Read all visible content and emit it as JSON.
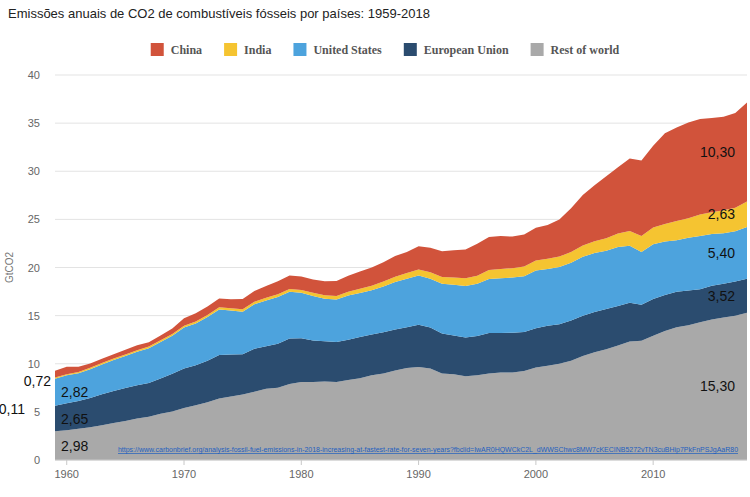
{
  "chart_data": {
    "type": "area",
    "stacked": true,
    "title": "Emissões anuais de CO2 de combustíveis fósseis por países: 1959-2018",
    "y_label": "GtCO2",
    "source": "https://www.carbonbrief.org/analysis-fossil-fuel-emissions-in-2018-increasing-at-fastest-rate-for-seven-years?fbclid=IwAR0HQWCkC2L_dWWSChwc8MW7cKECINB5272vTN3cuBHip7PkFnPSJgAaR80",
    "legend": "top",
    "grid": true,
    "data_labels": true,
    "xlim": [
      1959,
      2018
    ],
    "xticks": [
      1960,
      1970,
      1980,
      1990,
      2000,
      2010
    ],
    "ylim": [
      0,
      40
    ],
    "yticks": [
      0,
      5,
      10,
      15,
      20,
      25,
      30,
      35,
      40
    ],
    "x": [
      1959,
      1960,
      1961,
      1962,
      1963,
      1964,
      1965,
      1966,
      1967,
      1968,
      1969,
      1970,
      1971,
      1972,
      1973,
      1974,
      1975,
      1976,
      1977,
      1978,
      1979,
      1980,
      1981,
      1982,
      1983,
      1984,
      1985,
      1986,
      1987,
      1988,
      1989,
      1990,
      1991,
      1992,
      1993,
      1994,
      1995,
      1996,
      1997,
      1998,
      1999,
      2000,
      2001,
      2002,
      2003,
      2004,
      2005,
      2006,
      2007,
      2008,
      2009,
      2010,
      2011,
      2012,
      2013,
      2014,
      2015,
      2016,
      2017,
      2018
    ],
    "series": [
      {
        "name": "China",
        "color": "#d1533b",
        "values": [
          0.72,
          0.78,
          0.55,
          0.44,
          0.44,
          0.44,
          0.48,
          0.52,
          0.44,
          0.48,
          0.58,
          0.77,
          0.85,
          0.89,
          0.92,
          0.93,
          1.07,
          1.11,
          1.22,
          1.35,
          1.39,
          1.4,
          1.39,
          1.47,
          1.54,
          1.66,
          1.79,
          1.88,
          2.0,
          2.15,
          2.19,
          2.42,
          2.55,
          2.67,
          2.84,
          3.0,
          3.32,
          3.43,
          3.42,
          3.28,
          3.32,
          3.41,
          3.52,
          3.85,
          4.54,
          5.26,
          5.83,
          6.44,
          6.88,
          7.55,
          7.84,
          8.5,
          9.44,
          9.72,
          9.95,
          9.94,
          9.78,
          9.71,
          9.86,
          10.3
        ],
        "value_labels": [
          "0,72",
          null,
          null,
          null,
          null,
          null,
          null,
          null,
          null,
          null,
          null,
          null,
          null,
          null,
          null,
          null,
          null,
          null,
          null,
          null,
          null,
          null,
          null,
          null,
          null,
          null,
          null,
          null,
          null,
          null,
          null,
          null,
          null,
          null,
          null,
          null,
          null,
          null,
          null,
          null,
          null,
          null,
          null,
          null,
          null,
          null,
          null,
          null,
          null,
          null,
          null,
          null,
          null,
          null,
          null,
          null,
          null,
          null,
          null,
          "10,30"
        ]
      },
      {
        "name": "India",
        "color": "#f5c431",
        "values": [
          0.11,
          0.12,
          0.13,
          0.14,
          0.15,
          0.15,
          0.17,
          0.17,
          0.18,
          0.19,
          0.19,
          0.2,
          0.21,
          0.22,
          0.23,
          0.24,
          0.26,
          0.27,
          0.28,
          0.29,
          0.3,
          0.3,
          0.33,
          0.35,
          0.38,
          0.4,
          0.44,
          0.47,
          0.51,
          0.55,
          0.59,
          0.62,
          0.67,
          0.71,
          0.74,
          0.79,
          0.85,
          0.92,
          0.95,
          0.97,
          1.02,
          1.03,
          1.05,
          1.08,
          1.11,
          1.17,
          1.22,
          1.3,
          1.4,
          1.52,
          1.65,
          1.73,
          1.83,
          1.98,
          2.04,
          2.22,
          2.25,
          2.38,
          2.44,
          2.63
        ],
        "value_labels": [
          "0,11",
          null,
          null,
          null,
          null,
          null,
          null,
          null,
          null,
          null,
          null,
          null,
          null,
          null,
          null,
          null,
          null,
          null,
          null,
          null,
          null,
          null,
          null,
          null,
          null,
          null,
          null,
          null,
          null,
          null,
          null,
          null,
          null,
          null,
          null,
          null,
          null,
          null,
          null,
          null,
          null,
          null,
          null,
          null,
          null,
          null,
          null,
          null,
          null,
          null,
          null,
          null,
          null,
          null,
          null,
          null,
          null,
          null,
          null,
          "2,63"
        ]
      },
      {
        "name": "United States",
        "color": "#4da3dd",
        "values": [
          2.82,
          2.9,
          2.88,
          2.99,
          3.1,
          3.21,
          3.33,
          3.48,
          3.61,
          3.78,
          3.95,
          4.26,
          4.33,
          4.55,
          4.74,
          4.58,
          4.41,
          4.63,
          4.75,
          4.85,
          4.84,
          4.72,
          4.62,
          4.41,
          4.42,
          4.58,
          4.58,
          4.59,
          4.75,
          4.95,
          5.03,
          5.12,
          5.07,
          5.17,
          5.28,
          5.36,
          5.42,
          5.61,
          5.69,
          5.74,
          5.8,
          6.0,
          5.9,
          5.95,
          6.0,
          6.11,
          6.13,
          6.05,
          6.13,
          5.91,
          5.48,
          5.68,
          5.56,
          5.36,
          5.48,
          5.53,
          5.38,
          5.25,
          5.21,
          5.4
        ],
        "value_labels": [
          "2,82",
          null,
          null,
          null,
          null,
          null,
          null,
          null,
          null,
          null,
          null,
          null,
          null,
          null,
          null,
          null,
          null,
          null,
          null,
          null,
          null,
          null,
          null,
          null,
          null,
          null,
          null,
          null,
          null,
          null,
          null,
          null,
          null,
          null,
          null,
          null,
          null,
          null,
          null,
          null,
          null,
          null,
          null,
          null,
          null,
          null,
          null,
          null,
          null,
          null,
          null,
          null,
          null,
          null,
          null,
          null,
          null,
          null,
          null,
          "5,40"
        ]
      },
      {
        "name": "European Union",
        "color": "#2b4c6f",
        "values": [
          2.65,
          2.8,
          2.88,
          3.05,
          3.23,
          3.33,
          3.42,
          3.46,
          3.5,
          3.68,
          3.9,
          4.1,
          4.15,
          4.3,
          4.5,
          4.35,
          4.2,
          4.45,
          4.42,
          4.58,
          4.73,
          4.55,
          4.32,
          4.2,
          4.15,
          4.2,
          4.27,
          4.25,
          4.28,
          4.25,
          4.25,
          4.4,
          4.27,
          4.13,
          4.04,
          4.03,
          4.08,
          4.2,
          4.1,
          4.12,
          4.04,
          4.1,
          4.15,
          4.1,
          4.2,
          4.2,
          4.17,
          4.18,
          4.1,
          4.05,
          3.74,
          3.84,
          3.73,
          3.68,
          3.6,
          3.45,
          3.51,
          3.52,
          3.55,
          3.52
        ],
        "value_labels": [
          "2,65",
          null,
          null,
          null,
          null,
          null,
          null,
          null,
          null,
          null,
          null,
          null,
          null,
          null,
          null,
          null,
          null,
          null,
          null,
          null,
          null,
          null,
          null,
          null,
          null,
          null,
          null,
          null,
          null,
          null,
          null,
          null,
          null,
          null,
          null,
          null,
          null,
          null,
          null,
          null,
          null,
          null,
          null,
          null,
          null,
          null,
          null,
          null,
          null,
          null,
          null,
          null,
          null,
          null,
          null,
          null,
          null,
          null,
          null,
          "3,52"
        ]
      },
      {
        "name": "Rest of world",
        "color": "#a9a9a9",
        "values": [
          2.98,
          3.1,
          3.25,
          3.4,
          3.6,
          3.85,
          4.05,
          4.3,
          4.5,
          4.8,
          5.05,
          5.4,
          5.7,
          6.0,
          6.4,
          6.6,
          6.8,
          7.1,
          7.4,
          7.5,
          7.9,
          8.1,
          8.1,
          8.15,
          8.1,
          8.3,
          8.5,
          8.8,
          9.0,
          9.3,
          9.55,
          9.65,
          9.5,
          9.0,
          8.9,
          8.7,
          8.8,
          9.0,
          9.1,
          9.1,
          9.25,
          9.6,
          9.8,
          10.0,
          10.3,
          10.8,
          11.2,
          11.5,
          11.9,
          12.3,
          12.4,
          12.9,
          13.4,
          13.8,
          14.0,
          14.3,
          14.6,
          14.8,
          15.0,
          15.3
        ],
        "value_labels": [
          "2,98",
          null,
          null,
          null,
          null,
          null,
          null,
          null,
          null,
          null,
          null,
          null,
          null,
          null,
          null,
          null,
          null,
          null,
          null,
          null,
          null,
          null,
          null,
          null,
          null,
          null,
          null,
          null,
          null,
          null,
          null,
          null,
          null,
          null,
          null,
          null,
          null,
          null,
          null,
          null,
          null,
          null,
          null,
          null,
          null,
          null,
          null,
          null,
          null,
          null,
          null,
          null,
          null,
          null,
          null,
          null,
          null,
          null,
          null,
          "15,30"
        ]
      }
    ]
  }
}
